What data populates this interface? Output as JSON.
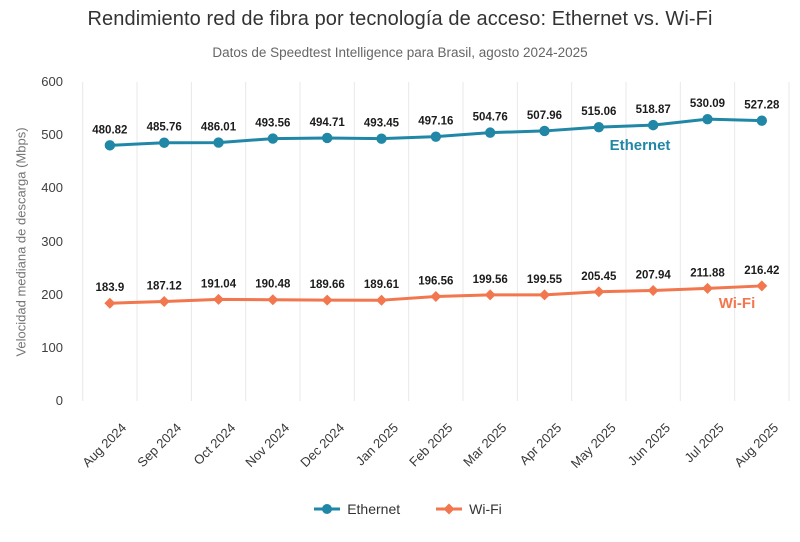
{
  "chart_data": {
    "type": "line",
    "title": "Rendimiento red de fibra por tecnología de acceso: Ethernet vs. Wi-Fi",
    "subtitle": "Datos de Speedtest Intelligence para Brasil, agosto 2024-2025",
    "xlabel": "",
    "ylabel": "Velocidad mediana de descarga (Mbps)",
    "ylim": [
      0,
      600
    ],
    "yticks": [
      0,
      100,
      200,
      300,
      400,
      500,
      600
    ],
    "grid": "vertical-only",
    "legend_position": "bottom",
    "data_labels": "on",
    "categories": [
      "Aug 2024",
      "Sep 2024",
      "Oct 2024",
      "Nov 2024",
      "Dec 2024",
      "Jan 2025",
      "Feb 2025",
      "Mar 2025",
      "Apr 2025",
      "May 2025",
      "Jun 2025",
      "Jul 2025",
      "Aug 2025"
    ],
    "series": [
      {
        "name": "Ethernet",
        "color": "#2087A6",
        "marker": "circle",
        "values": [
          480.82,
          485.76,
          486.01,
          493.56,
          494.71,
          493.45,
          497.16,
          504.76,
          507.96,
          515.06,
          518.87,
          530.09,
          527.28
        ]
      },
      {
        "name": "Wi-Fi",
        "color": "#F2764E",
        "marker": "diamond",
        "values": [
          183.9,
          187.12,
          191.04,
          190.48,
          189.66,
          189.61,
          196.56,
          199.56,
          199.55,
          205.45,
          207.94,
          211.88,
          216.42
        ]
      }
    ]
  },
  "colors": {
    "grid": "#e8e8e8",
    "data_label": "#1c1c1c",
    "title": "#333333",
    "subtitle": "#666666"
  }
}
